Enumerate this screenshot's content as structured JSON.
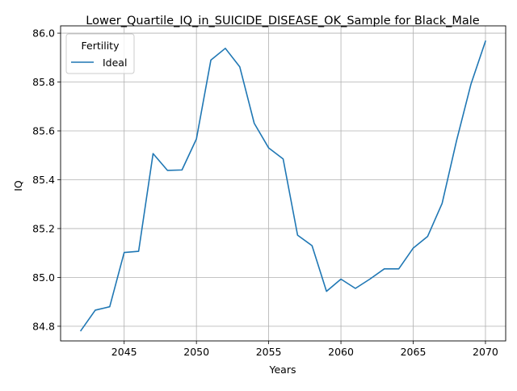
{
  "chart_data": {
    "type": "line",
    "title": "Lower_Quartile_IQ_in_SUICIDE_DISEASE_OK_Sample for Black_Male",
    "xlabel": "Years",
    "ylabel": "IQ",
    "xlim": [
      2040.6,
      2071.4
    ],
    "ylim": [
      84.74,
      86.03
    ],
    "xticks": [
      2045,
      2050,
      2055,
      2060,
      2065,
      2070
    ],
    "yticks": [
      84.8,
      85.0,
      85.2,
      85.4,
      85.6,
      85.8,
      86.0
    ],
    "xtick_labels": [
      "2045",
      "2050",
      "2055",
      "2060",
      "2065",
      "2070"
    ],
    "ytick_labels": [
      "84.8",
      "85.0",
      "85.2",
      "85.4",
      "85.6",
      "85.8",
      "86.0"
    ],
    "grid": true,
    "legend": {
      "title": "Fertility",
      "position": "top-left"
    },
    "series": [
      {
        "name": "Ideal",
        "color": "#1f77b4",
        "x": [
          2042,
          2043,
          2044,
          2045,
          2046,
          2047,
          2048,
          2049,
          2050,
          2051,
          2052,
          2053,
          2054,
          2055,
          2056,
          2057,
          2058,
          2059,
          2060,
          2061,
          2062,
          2063,
          2064,
          2065,
          2066,
          2067,
          2068,
          2069,
          2070
        ],
        "y": [
          84.782,
          84.866,
          84.88,
          85.102,
          85.107,
          85.507,
          85.438,
          85.44,
          85.567,
          85.89,
          85.938,
          85.862,
          85.631,
          85.53,
          85.485,
          85.173,
          85.13,
          84.943,
          84.993,
          84.955,
          84.993,
          85.035,
          85.035,
          85.12,
          85.168,
          85.303,
          85.56,
          85.792,
          85.967
        ]
      }
    ]
  }
}
